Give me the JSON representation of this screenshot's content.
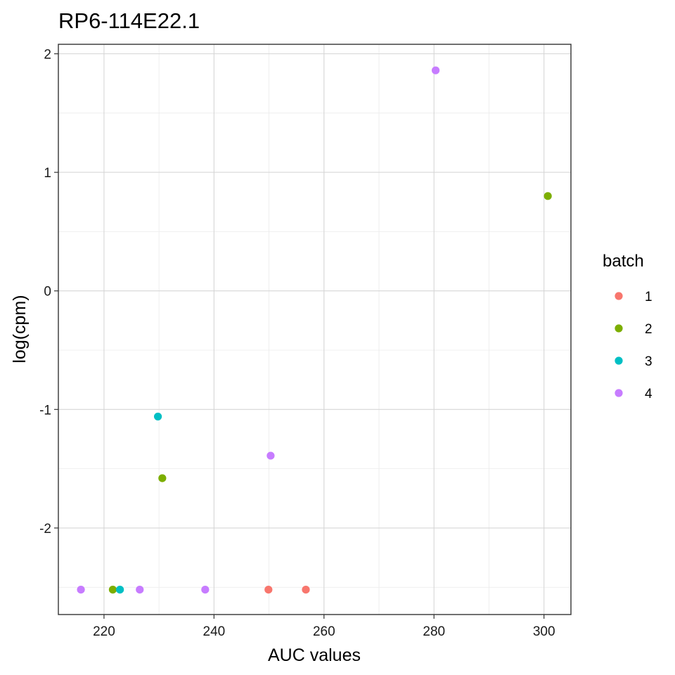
{
  "chart_data": {
    "type": "scatter",
    "title": "RP6-114E22.1",
    "xlabel": "AUC values",
    "ylabel": "log(cpm)",
    "xlim": [
      211.7,
      304.9
    ],
    "ylim": [
      -2.73,
      2.08
    ],
    "x_ticks": [
      220,
      240,
      260,
      280,
      300
    ],
    "y_ticks": [
      -2,
      -1,
      0,
      1,
      2
    ],
    "x_tick_labels": [
      "220",
      "240",
      "260",
      "280",
      "300"
    ],
    "y_tick_labels": [
      "-2",
      "-1",
      "0",
      "1",
      "2"
    ],
    "grid": true,
    "legend": {
      "title": "batch",
      "placement": "right",
      "entries": [
        {
          "label": "1",
          "color": "#F8766D"
        },
        {
          "label": "2",
          "color": "#7CAE00"
        },
        {
          "label": "3",
          "color": "#00BFC4"
        },
        {
          "label": "4",
          "color": "#C77CFF"
        }
      ]
    },
    "series": [
      {
        "name": "1",
        "color": "#F8766D",
        "points": [
          [
            249.9,
            -2.52
          ],
          [
            256.7,
            -2.52
          ]
        ]
      },
      {
        "name": "2",
        "color": "#7CAE00",
        "points": [
          [
            221.6,
            -2.52
          ],
          [
            230.6,
            -1.58
          ],
          [
            300.7,
            0.8
          ]
        ]
      },
      {
        "name": "3",
        "color": "#00BFC4",
        "points": [
          [
            222.9,
            -2.52
          ],
          [
            229.8,
            -1.06
          ]
        ]
      },
      {
        "name": "4",
        "color": "#C77CFF",
        "points": [
          [
            215.8,
            -2.52
          ],
          [
            226.5,
            -2.52
          ],
          [
            238.4,
            -2.52
          ],
          [
            250.3,
            -1.39
          ],
          [
            280.3,
            1.86
          ]
        ]
      }
    ]
  }
}
